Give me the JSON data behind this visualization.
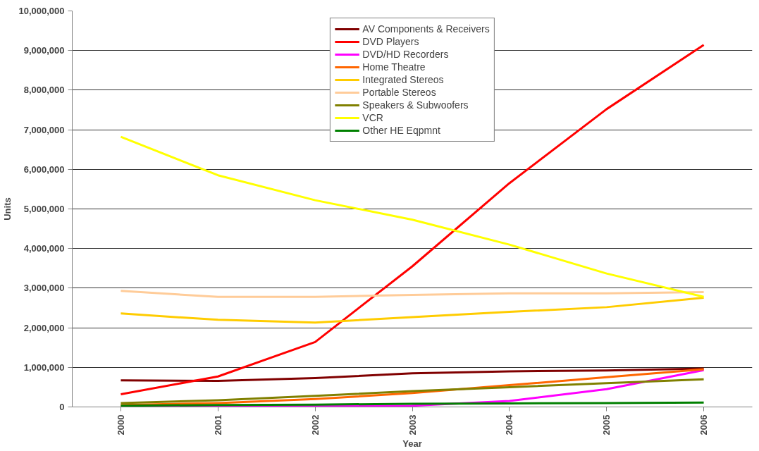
{
  "chart_data": {
    "type": "line",
    "xlabel": "Year",
    "ylabel": "Units",
    "categories": [
      "2000",
      "2001",
      "2002",
      "2003",
      "2004",
      "2005",
      "2006"
    ],
    "ylim": [
      0,
      10000000
    ],
    "yticks": [
      0,
      {
        "value": 1000000,
        "label": "1,000,000"
      },
      {
        "value": 2000000,
        "label": "2,000,000"
      },
      {
        "value": 3000000,
        "label": "3,000,000"
      },
      {
        "value": 4000000,
        "label": "4,000,000"
      },
      {
        "value": 5000000,
        "label": "5,000,000"
      },
      {
        "value": 6000000,
        "label": "6,000,000"
      },
      {
        "value": 7000000,
        "label": "7,000,000"
      },
      {
        "value": 8000000,
        "label": "8,000,000"
      },
      {
        "value": 9000000,
        "label": "9,000,000"
      },
      {
        "value": 10000000,
        "label": "10,000,000"
      }
    ],
    "grid": "y",
    "legend": "top",
    "marker": "none",
    "line_style": "solid",
    "series": [
      {
        "name": "AV Components & Receivers",
        "color": "#800000",
        "values": [
          670000,
          660000,
          730000,
          850000,
          900000,
          920000,
          970000
        ]
      },
      {
        "name": "DVD Players",
        "color": "#ff0000",
        "values": [
          320000,
          770000,
          1640000,
          3550000,
          5650000,
          7520000,
          9140000
        ]
      },
      {
        "name": "DVD/HD Recorders",
        "color": "#ff00ff",
        "values": [
          0,
          10000,
          20000,
          30000,
          150000,
          450000,
          930000
        ]
      },
      {
        "name": "Home Theatre",
        "color": "#ff6600",
        "values": [
          50000,
          100000,
          200000,
          350000,
          550000,
          750000,
          950000
        ]
      },
      {
        "name": "Integrated Stereos",
        "color": "#ffcc00",
        "values": [
          2360000,
          2200000,
          2130000,
          2270000,
          2400000,
          2520000,
          2760000
        ]
      },
      {
        "name": "Portable Stereos",
        "color": "#ffcc99",
        "values": [
          2930000,
          2780000,
          2780000,
          2830000,
          2870000,
          2870000,
          2900000
        ]
      },
      {
        "name": "Speakers & Subwoofers",
        "color": "#808000",
        "values": [
          100000,
          170000,
          280000,
          400000,
          500000,
          600000,
          700000
        ]
      },
      {
        "name": "VCR",
        "color": "#ffff00",
        "values": [
          6820000,
          5850000,
          5220000,
          4730000,
          4100000,
          3370000,
          2780000
        ]
      },
      {
        "name": "Other HE Eqpmnt",
        "color": "#008000",
        "values": [
          30000,
          50000,
          60000,
          80000,
          90000,
          100000,
          110000
        ]
      }
    ]
  }
}
